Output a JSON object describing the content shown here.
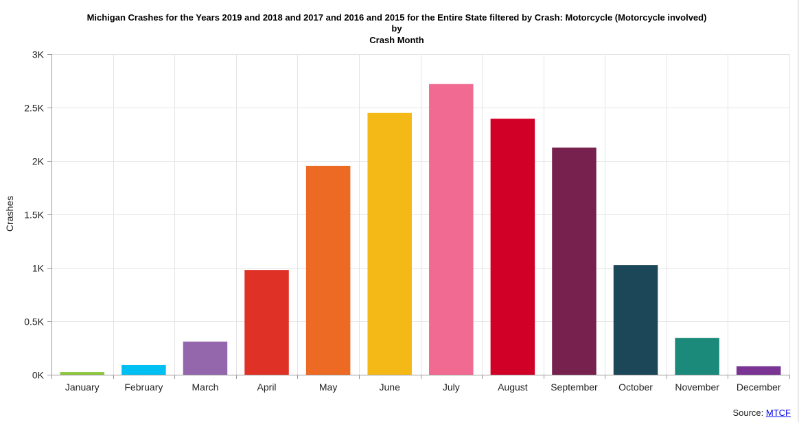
{
  "chart_data": {
    "type": "bar",
    "title_lines": [
      "Michigan Crashes for the Years 2019 and 2018 and 2017 and 2016 and 2015 for the Entire State filtered by Crash: Motorcycle (Motorcycle involved)",
      "by",
      "Crash Month"
    ],
    "xlabel": "",
    "ylabel": "Crashes",
    "ylim": [
      0,
      3000
    ],
    "y_ticks": [
      0,
      500,
      1000,
      1500,
      2000,
      2500,
      3000
    ],
    "y_tick_labels": [
      "0K",
      "0.5K",
      "1K",
      "1.5K",
      "2K",
      "2.5K",
      "3K"
    ],
    "categories": [
      "January",
      "February",
      "March",
      "April",
      "May",
      "June",
      "July",
      "August",
      "September",
      "October",
      "November",
      "December"
    ],
    "values": [
      25,
      90,
      310,
      980,
      1955,
      2450,
      2720,
      2395,
      2125,
      1025,
      345,
      80
    ],
    "colors": [
      "#8cc63f",
      "#00bff3",
      "#9467ad",
      "#e03126",
      "#ec6a23",
      "#f4b916",
      "#f06a91",
      "#d10026",
      "#76214e",
      "#1b4759",
      "#1c8a7b",
      "#7a3594"
    ],
    "grid": true,
    "legend": "none"
  },
  "source": {
    "prefix": "Source: ",
    "link_text": "MTCF"
  }
}
